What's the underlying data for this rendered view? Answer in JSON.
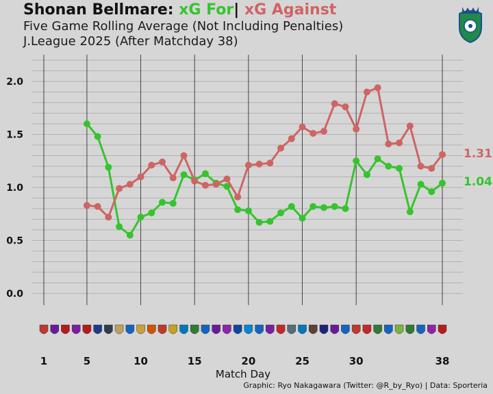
{
  "header": {
    "team": "Shonan Bellmare:",
    "xg_for": "xG For",
    "separator": "|",
    "xg_against": "xG Against",
    "subtitle1": "Five Game Rolling Average (Not Including Penalties)",
    "subtitle2": "J.League 2025 (After Matchday 38)"
  },
  "footer": {
    "xlabel": "Match Day",
    "credit": "Graphic: Ryo Nakagawara (Twitter: @R_by_Ryo) | Data: Sporteria"
  },
  "colors": {
    "background": "#d6d6d6",
    "xg_for": "#35c42d",
    "xg_against": "#cf6464",
    "grid": "#555555"
  },
  "chart_data": {
    "type": "line",
    "xlabel": "Match Day",
    "ylabel": "",
    "xlim": [
      1,
      38
    ],
    "ylim": [
      0,
      2.0
    ],
    "xticks": [
      1,
      5,
      10,
      15,
      20,
      25,
      30,
      38
    ],
    "yticks": [
      0.0,
      0.5,
      1.0,
      1.5,
      2.0
    ],
    "ytick_labels": [
      "0.0",
      "0.5",
      "1.0",
      "1.5",
      "2.0"
    ],
    "grid": true,
    "x": [
      5,
      6,
      7,
      8,
      9,
      10,
      11,
      12,
      13,
      14,
      15,
      16,
      17,
      18,
      19,
      20,
      21,
      22,
      23,
      24,
      25,
      26,
      27,
      28,
      29,
      30,
      31,
      32,
      33,
      34,
      35,
      36,
      37,
      38
    ],
    "series": [
      {
        "name": "xG For",
        "color": "#35c42d",
        "end_label": "1.04",
        "values": [
          1.6,
          1.48,
          1.19,
          0.63,
          0.55,
          0.72,
          0.76,
          0.86,
          0.85,
          1.12,
          1.07,
          1.13,
          1.04,
          1.01,
          0.79,
          0.78,
          0.67,
          0.68,
          0.76,
          0.82,
          0.71,
          0.82,
          0.81,
          0.82,
          0.8,
          1.25,
          1.12,
          1.27,
          1.2,
          1.18,
          0.77,
          1.03,
          0.96,
          1.04
        ]
      },
      {
        "name": "xG Against",
        "color": "#cf6464",
        "end_label": "1.31",
        "values": [
          0.83,
          0.82,
          0.72,
          0.99,
          1.03,
          1.1,
          1.21,
          1.24,
          1.09,
          1.3,
          1.06,
          1.02,
          1.03,
          1.08,
          0.91,
          1.21,
          1.22,
          1.23,
          1.37,
          1.46,
          1.57,
          1.51,
          1.53,
          1.79,
          1.76,
          1.55,
          1.9,
          1.94,
          1.41,
          1.42,
          1.58,
          1.2,
          1.18,
          1.31
        ]
      }
    ],
    "opponent_badge_colors": [
      "#c0392b",
      "#6a1b9a",
      "#b71c1c",
      "#7b1fa2",
      "#b71c1c",
      "#1e3a8a",
      "#2c3e50",
      "#c0a060",
      "#1565c0",
      "#c8a040",
      "#d35400",
      "#c0392b",
      "#c8a020",
      "#0277bd",
      "#2e7d32",
      "#1565c0",
      "#6a1b9a",
      "#8e24aa",
      "#0d47a1",
      "#0288d1",
      "#1565c0",
      "#7b1fa2",
      "#c62828",
      "#546e7a",
      "#0277bd",
      "#5d4037",
      "#1a237e",
      "#6a1b9a",
      "#1565c0",
      "#c0392b",
      "#c62828",
      "#2e7d32",
      "#1565c0",
      "#7cb342",
      "#2e7d32",
      "#1565c0",
      "#8e24aa",
      "#b71c1c"
    ]
  }
}
